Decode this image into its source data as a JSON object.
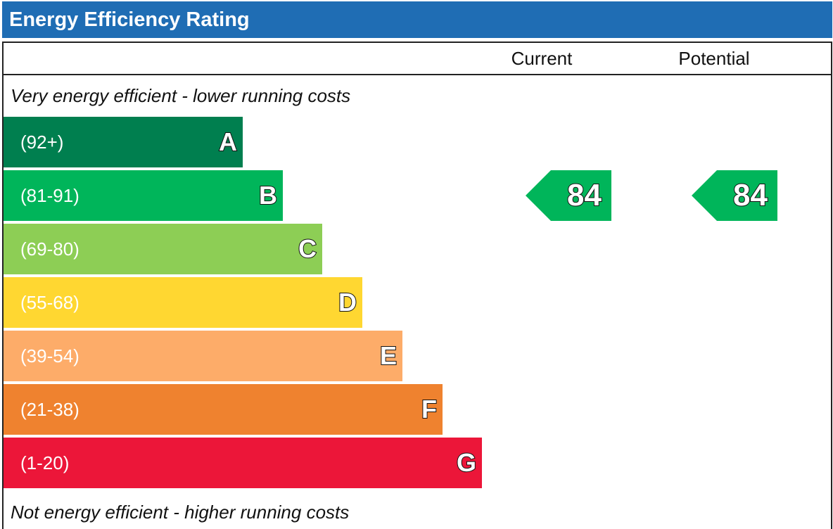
{
  "title": "Energy Efficiency Rating",
  "columns": {
    "current": "Current",
    "potential": "Potential"
  },
  "captions": {
    "top": "Very energy efficient - lower running costs",
    "bottom": "Not energy efficient - higher running costs"
  },
  "chart_data": {
    "type": "bar",
    "categories": [
      "A",
      "B",
      "C",
      "D",
      "E",
      "F",
      "G"
    ],
    "ranges": [
      "(92+)",
      "(81-91)",
      "(69-80)",
      "(55-68)",
      "(39-54)",
      "(21-38)",
      "(1-20)"
    ],
    "colors": [
      "#007f4f",
      "#00b55a",
      "#8dce55",
      "#ffd731",
      "#fdac69",
      "#ef822f",
      "#ec1639"
    ],
    "current": {
      "value": 84,
      "band": "B",
      "color": "#00b55a"
    },
    "potential": {
      "value": 84,
      "band": "B",
      "color": "#00b55a"
    }
  }
}
